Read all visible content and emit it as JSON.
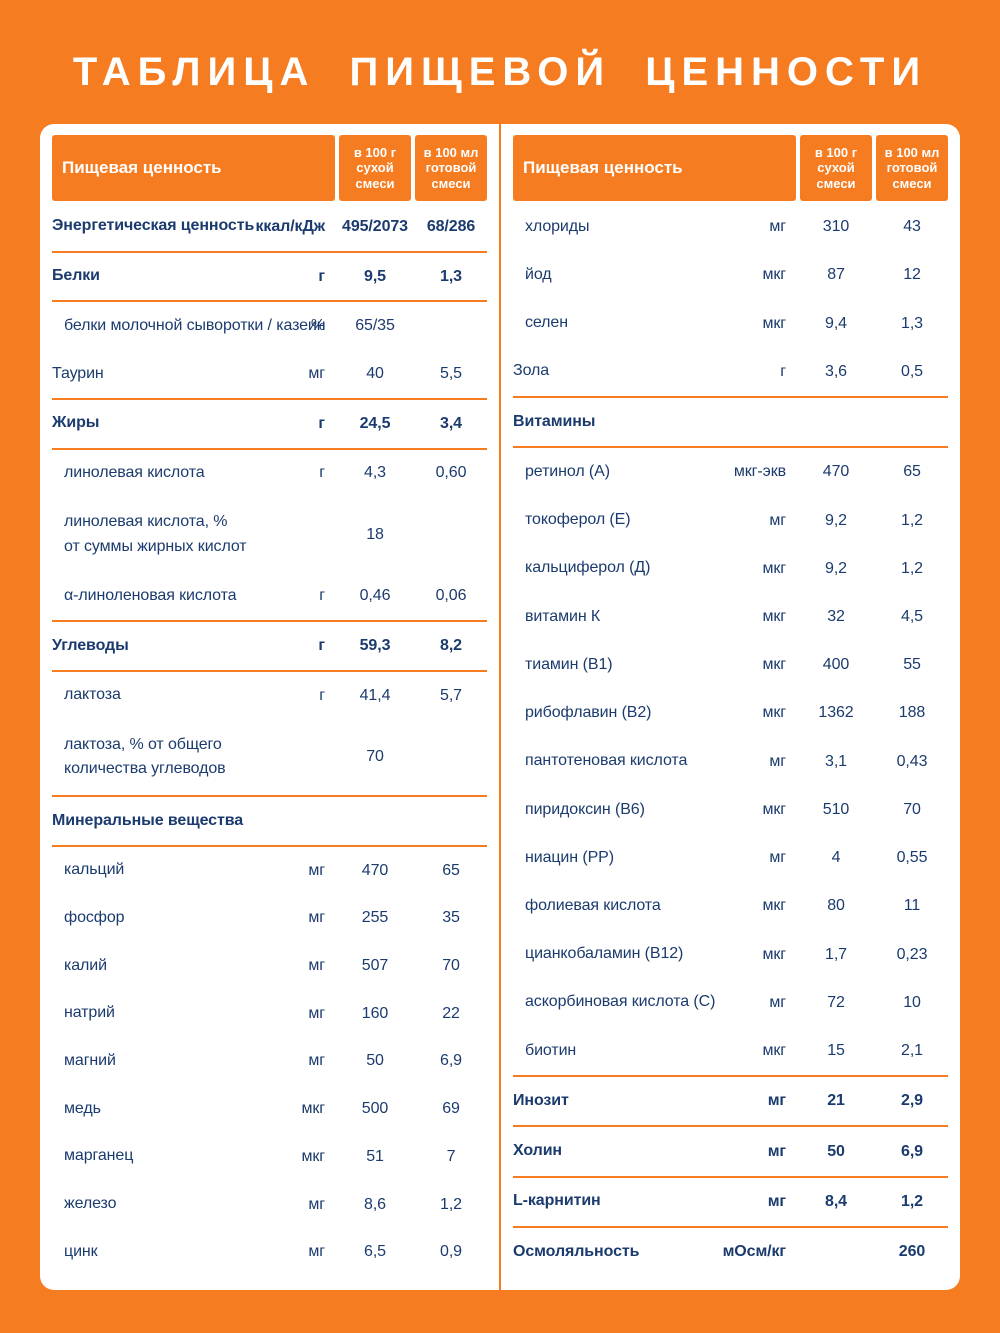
{
  "title": "ТАБЛИЦА ПИЩЕВОЙ ЦЕННОСТИ",
  "colors": {
    "background": "#F57C20",
    "card": "#FFFFFF",
    "text": "#1B3B6E",
    "header_text": "#FFFFFF"
  },
  "header": {
    "name_label": "Пищевая ценность",
    "col_dry": "в 100 г сухой смеси",
    "col_ready": "в 100 мл готовой смеси"
  },
  "table": {
    "left_rows": [
      {
        "label": "Энергетическая ценность",
        "unit": "ккал/кДж",
        "per_100g": "495/2073",
        "per_100ml": "68/286",
        "bold": true,
        "divider": true
      },
      {
        "label": "Белки",
        "unit": "г",
        "per_100g": "9,5",
        "per_100ml": "1,3",
        "bold": true,
        "divider": true
      },
      {
        "label": "белки молочной сыворотки / казеин",
        "unit": "%",
        "per_100g": "65/35",
        "per_100ml": "",
        "indent": true
      },
      {
        "label": "Таурин",
        "unit": "мг",
        "per_100g": "40",
        "per_100ml": "5,5",
        "divider": true
      },
      {
        "label": "Жиры",
        "unit": "г",
        "per_100g": "24,5",
        "per_100ml": "3,4",
        "bold": true,
        "divider": true
      },
      {
        "label": "линолевая кислота",
        "unit": "г",
        "per_100g": "4,3",
        "per_100ml": "0,60",
        "indent": true
      },
      {
        "label": "линолевая кислота, %",
        "label2": "от суммы жирных кислот",
        "unit": "",
        "per_100g": "18",
        "per_100ml": "",
        "indent": true
      },
      {
        "label": "α-линоленовая кислота",
        "unit": "г",
        "per_100g": "0,46",
        "per_100ml": "0,06",
        "indent": true,
        "divider": true
      },
      {
        "label": "Углеводы",
        "unit": "г",
        "per_100g": "59,3",
        "per_100ml": "8,2",
        "bold": true,
        "divider": true
      },
      {
        "label": "лактоза",
        "unit": "г",
        "per_100g": "41,4",
        "per_100ml": "5,7",
        "indent": true
      },
      {
        "label": "лактоза, % от общего",
        "label2": "количества углеводов",
        "unit": "",
        "per_100g": "70",
        "per_100ml": "",
        "indent": true,
        "divider": true
      },
      {
        "label": "Минеральные вещества",
        "unit": "",
        "per_100g": "",
        "per_100ml": "",
        "bold": true,
        "divider": true
      },
      {
        "label": "кальций",
        "unit": "мг",
        "per_100g": "470",
        "per_100ml": "65",
        "indent": true
      },
      {
        "label": "фосфор",
        "unit": "мг",
        "per_100g": "255",
        "per_100ml": "35",
        "indent": true
      },
      {
        "label": "калий",
        "unit": "мг",
        "per_100g": "507",
        "per_100ml": "70",
        "indent": true
      },
      {
        "label": "натрий",
        "unit": "мг",
        "per_100g": "160",
        "per_100ml": "22",
        "indent": true
      },
      {
        "label": "магний",
        "unit": "мг",
        "per_100g": "50",
        "per_100ml": "6,9",
        "indent": true
      },
      {
        "label": "медь",
        "unit": "мкг",
        "per_100g": "500",
        "per_100ml": "69",
        "indent": true
      },
      {
        "label": "марганец",
        "unit": "мкг",
        "per_100g": "51",
        "per_100ml": "7",
        "indent": true
      },
      {
        "label": "железо",
        "unit": "мг",
        "per_100g": "8,6",
        "per_100ml": "1,2",
        "indent": true
      },
      {
        "label": "цинк",
        "unit": "мг",
        "per_100g": "6,5",
        "per_100ml": "0,9",
        "indent": true
      }
    ],
    "right_rows": [
      {
        "label": "хлориды",
        "unit": "мг",
        "per_100g": "310",
        "per_100ml": "43",
        "indent": true
      },
      {
        "label": "йод",
        "unit": "мкг",
        "per_100g": "87",
        "per_100ml": "12",
        "indent": true
      },
      {
        "label": "селен",
        "unit": "мкг",
        "per_100g": "9,4",
        "per_100ml": "1,3",
        "indent": true
      },
      {
        "label": "Зола",
        "unit": "г",
        "per_100g": "3,6",
        "per_100ml": "0,5",
        "divider": true
      },
      {
        "label": "Витамины",
        "unit": "",
        "per_100g": "",
        "per_100ml": "",
        "bold": true,
        "divider": true
      },
      {
        "label": "ретинол (А)",
        "unit": "мкг-экв",
        "per_100g": "470",
        "per_100ml": "65",
        "indent": true
      },
      {
        "label": "токоферол (Е)",
        "unit": "мг",
        "per_100g": "9,2",
        "per_100ml": "1,2",
        "indent": true
      },
      {
        "label": "кальциферол (Д)",
        "unit": "мкг",
        "per_100g": "9,2",
        "per_100ml": "1,2",
        "indent": true
      },
      {
        "label": "витамин К",
        "unit": "мкг",
        "per_100g": "32",
        "per_100ml": "4,5",
        "indent": true
      },
      {
        "label": "тиамин (В1)",
        "unit": "мкг",
        "per_100g": "400",
        "per_100ml": "55",
        "indent": true
      },
      {
        "label": "рибофлавин (В2)",
        "unit": "мкг",
        "per_100g": "1362",
        "per_100ml": "188",
        "indent": true
      },
      {
        "label": "пантотеновая кислота",
        "unit": "мг",
        "per_100g": "3,1",
        "per_100ml": "0,43",
        "indent": true
      },
      {
        "label": "пиридоксин (В6)",
        "unit": "мкг",
        "per_100g": "510",
        "per_100ml": "70",
        "indent": true
      },
      {
        "label": "ниацин (РР)",
        "unit": "мг",
        "per_100g": "4",
        "per_100ml": "0,55",
        "indent": true
      },
      {
        "label": "фолиевая кислота",
        "unit": "мкг",
        "per_100g": "80",
        "per_100ml": "11",
        "indent": true
      },
      {
        "label": "цианкобаламин (В12)",
        "unit": "мкг",
        "per_100g": "1,7",
        "per_100ml": "0,23",
        "indent": true
      },
      {
        "label": "аскорбиновая кислота (С)",
        "unit": "мг",
        "per_100g": "72",
        "per_100ml": "10",
        "indent": true
      },
      {
        "label": "биотин",
        "unit": "мкг",
        "per_100g": "15",
        "per_100ml": "2,1",
        "indent": true,
        "divider": true
      },
      {
        "label": "Инозит",
        "unit": "мг",
        "per_100g": "21",
        "per_100ml": "2,9",
        "bold": true,
        "divider": true
      },
      {
        "label": "Холин",
        "unit": "мг",
        "per_100g": "50",
        "per_100ml": "6,9",
        "bold": true,
        "divider": true
      },
      {
        "label": "L-карнитин",
        "unit": "мг",
        "per_100g": "8,4",
        "per_100ml": "1,2",
        "bold": true,
        "divider": true
      },
      {
        "label": "Осмоляльность",
        "unit": "мОсм/кг",
        "per_100g": "",
        "per_100ml": "260",
        "bold": true
      }
    ]
  }
}
